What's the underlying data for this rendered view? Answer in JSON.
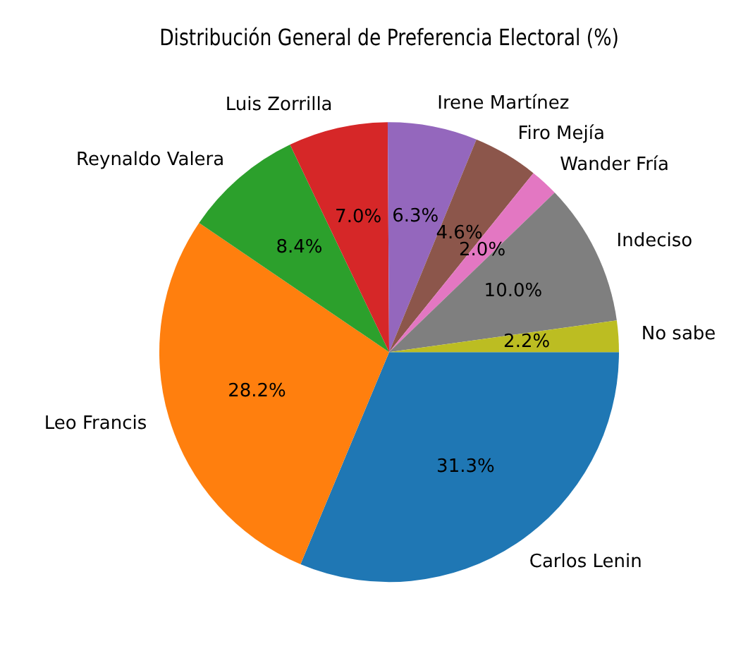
{
  "chart_data": {
    "type": "pie",
    "title": "Distribución General de Preferencia Electoral (%)",
    "categories": [
      "Carlos Lenin",
      "Leo Francis",
      "Reynaldo Valera",
      "Luis Zorrilla",
      "Irene Martínez",
      "Firo Mejía",
      "Wander Fría",
      "Indeciso",
      "No sabe"
    ],
    "values": [
      31.3,
      28.2,
      8.4,
      7.0,
      6.3,
      4.6,
      2.0,
      10.0,
      2.2
    ],
    "colors": [
      "#1f77b4",
      "#ff7f0e",
      "#2ca02c",
      "#d62728",
      "#9467bd",
      "#8c564b",
      "#e377c2",
      "#7f7f7f",
      "#bcbd22"
    ],
    "value_labels": [
      "31.3%",
      "28.2%",
      "8.4%",
      "7.0%",
      "6.3%",
      "4.6%",
      "2.0%",
      "10.0%",
      "2.2%"
    ],
    "legend": false
  }
}
